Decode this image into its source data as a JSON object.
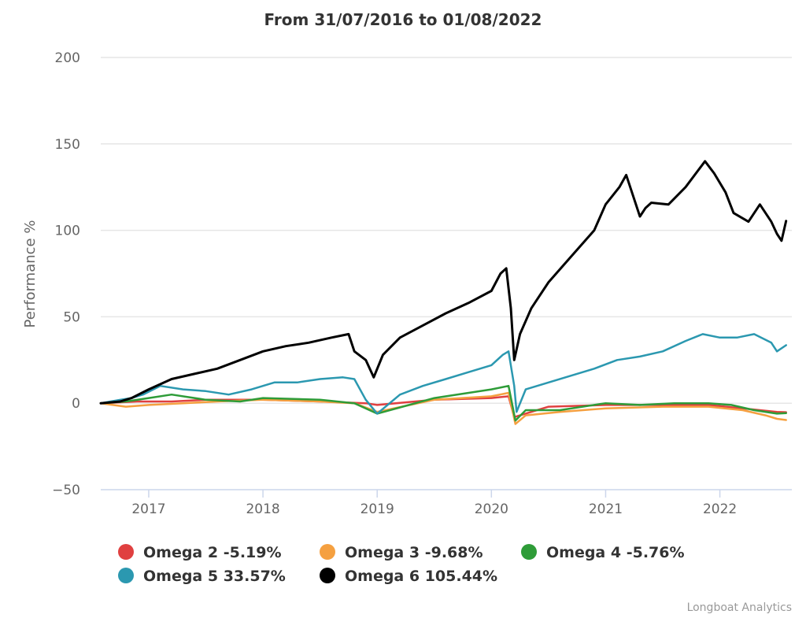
{
  "chart_data": {
    "type": "line",
    "title": "From 31/07/2016 to 01/08/2022",
    "xlabel": "",
    "ylabel": "Performance %",
    "xlim": [
      2016.58,
      2022.63
    ],
    "ylim": [
      -50,
      200
    ],
    "y_ticks": [
      -50,
      0,
      50,
      100,
      150,
      200
    ],
    "x_ticks": [
      {
        "value": 2017,
        "label": "2017"
      },
      {
        "value": 2018,
        "label": "2018"
      },
      {
        "value": 2019,
        "label": "2019"
      },
      {
        "value": 2020,
        "label": "2020"
      },
      {
        "value": 2021,
        "label": "2021"
      },
      {
        "value": 2022,
        "label": "2022"
      }
    ],
    "grid": true,
    "legend_position": "bottom",
    "credit": "Longboat Analytics",
    "series": [
      {
        "name": "Omega 2 -5.19%",
        "color": "#e04040",
        "x": [
          2016.58,
          2016.9,
          2017.2,
          2017.5,
          2018.0,
          2018.5,
          2018.9,
          2019.0,
          2019.5,
          2020.0,
          2020.15,
          2020.2,
          2020.5,
          2021.0,
          2021.5,
          2021.9,
          2022.2,
          2022.5,
          2022.58
        ],
        "y": [
          0,
          1,
          1,
          2,
          2,
          1,
          0,
          -1,
          2,
          3,
          4,
          -8,
          -2,
          -1,
          -1,
          -1,
          -3,
          -5,
          -5.19
        ]
      },
      {
        "name": "Omega 3 -9.68%",
        "color": "#f5a040",
        "x": [
          2016.58,
          2016.8,
          2017.0,
          2017.3,
          2017.6,
          2018.0,
          2018.5,
          2018.8,
          2019.0,
          2019.5,
          2020.0,
          2020.15,
          2020.21,
          2020.3,
          2020.6,
          2021.0,
          2021.5,
          2021.9,
          2022.2,
          2022.4,
          2022.5,
          2022.58
        ],
        "y": [
          0,
          -2,
          -1,
          0,
          1,
          2,
          1,
          0,
          -5,
          2,
          4,
          6,
          -12,
          -7,
          -5,
          -3,
          -2,
          -2,
          -4,
          -7,
          -9,
          -9.68
        ]
      },
      {
        "name": "Omega 4 -5.76%",
        "color": "#2e9c38",
        "x": [
          2016.58,
          2016.8,
          2017.0,
          2017.2,
          2017.5,
          2017.8,
          2018.0,
          2018.5,
          2018.8,
          2019.0,
          2019.5,
          2020.0,
          2020.15,
          2020.21,
          2020.3,
          2020.6,
          2021.0,
          2021.3,
          2021.6,
          2021.9,
          2022.1,
          2022.3,
          2022.5,
          2022.58
        ],
        "y": [
          0,
          1,
          3,
          5,
          2,
          1,
          3,
          2,
          0,
          -6,
          3,
          8,
          10,
          -10,
          -4,
          -4,
          0,
          -1,
          0,
          0,
          -1,
          -4,
          -6,
          -5.76
        ]
      },
      {
        "name": "Omega 5 33.57%",
        "color": "#2b98b0",
        "x": [
          2016.58,
          2016.75,
          2016.85,
          2016.95,
          2017.1,
          2017.3,
          2017.5,
          2017.7,
          2017.9,
          2018.1,
          2018.3,
          2018.5,
          2018.7,
          2018.8,
          2018.9,
          2019.0,
          2019.2,
          2019.4,
          2019.6,
          2019.8,
          2020.0,
          2020.1,
          2020.15,
          2020.2,
          2020.22,
          2020.3,
          2020.5,
          2020.7,
          2020.9,
          2021.1,
          2021.3,
          2021.5,
          2021.7,
          2021.85,
          2022.0,
          2022.15,
          2022.3,
          2022.45,
          2022.5,
          2022.58
        ],
        "y": [
          0,
          2,
          3,
          5,
          10,
          8,
          7,
          5,
          8,
          12,
          12,
          14,
          15,
          14,
          2,
          -6,
          5,
          10,
          14,
          18,
          22,
          28,
          30,
          10,
          -5,
          8,
          12,
          16,
          20,
          25,
          27,
          30,
          36,
          40,
          38,
          38,
          40,
          35,
          30,
          33.57
        ]
      },
      {
        "name": "Omega 6 105.44%",
        "color": "#000000",
        "x": [
          2016.58,
          2016.75,
          2016.85,
          2017.0,
          2017.2,
          2017.4,
          2017.6,
          2017.8,
          2018.0,
          2018.2,
          2018.4,
          2018.6,
          2018.75,
          2018.8,
          2018.9,
          2018.97,
          2019.05,
          2019.2,
          2019.4,
          2019.6,
          2019.8,
          2020.0,
          2020.08,
          2020.13,
          2020.17,
          2020.2,
          2020.25,
          2020.35,
          2020.5,
          2020.7,
          2020.9,
          2021.0,
          2021.12,
          2021.18,
          2021.3,
          2021.35,
          2021.4,
          2021.55,
          2021.7,
          2021.87,
          2021.95,
          2022.05,
          2022.12,
          2022.25,
          2022.35,
          2022.45,
          2022.5,
          2022.54,
          2022.58
        ],
        "y": [
          0,
          1,
          3,
          8,
          14,
          17,
          20,
          25,
          30,
          33,
          35,
          38,
          40,
          30,
          25,
          15,
          28,
          38,
          45,
          52,
          58,
          65,
          75,
          78,
          55,
          25,
          40,
          55,
          70,
          85,
          100,
          115,
          125,
          132,
          108,
          113,
          116,
          115,
          125,
          140,
          133,
          122,
          110,
          105,
          115,
          105,
          98,
          94,
          105.44
        ]
      }
    ]
  }
}
